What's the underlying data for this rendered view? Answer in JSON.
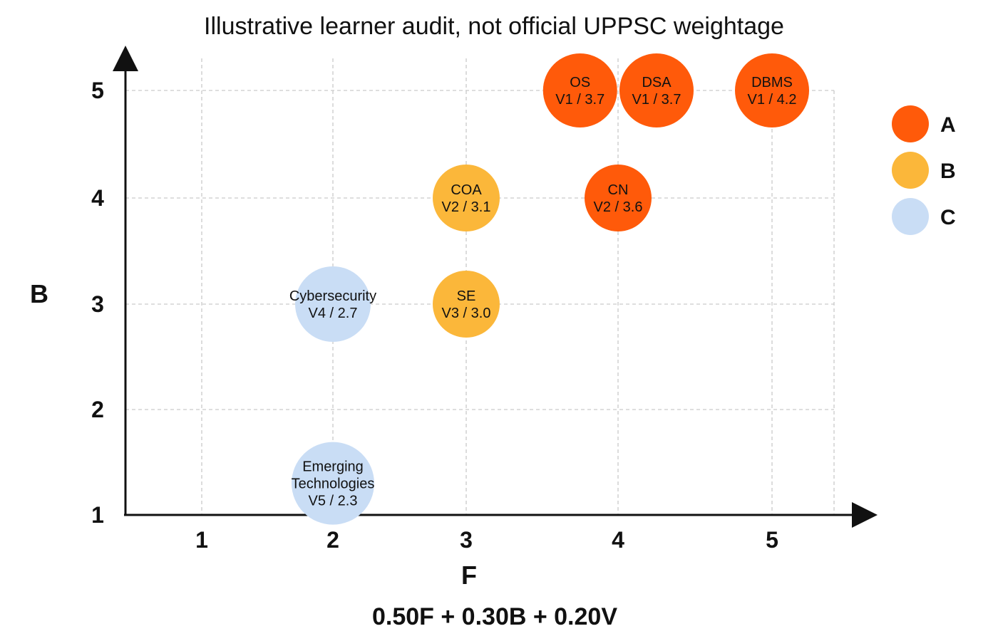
{
  "chart_data": {
    "type": "scatter",
    "title": "Illustrative learner audit, not official UPPSC weightage",
    "xlabel": "F",
    "ylabel": "B",
    "formula": "0.50F + 0.30B + 0.20V",
    "xlim": [
      0.5,
      5.5
    ],
    "ylim": [
      1,
      5.5
    ],
    "xticks": [
      "1",
      "2",
      "3",
      "4",
      "5"
    ],
    "yticks": [
      "1",
      "2",
      "3",
      "4",
      "5"
    ],
    "grid": true,
    "legend_position": "right",
    "colors": {
      "A": "#ff5a0a",
      "B": "#fbb73a",
      "C": "#c9ddf5"
    },
    "legend": [
      {
        "key": "A",
        "label": "A"
      },
      {
        "key": "B",
        "label": "B"
      },
      {
        "key": "C",
        "label": "C"
      }
    ],
    "points": [
      {
        "name": "OS",
        "detail": "V1 / 3.7",
        "x": 3.75,
        "y": 5,
        "v": 1,
        "score": 3.7,
        "group": "A"
      },
      {
        "name": "DSA",
        "detail": "V1 / 3.7",
        "x": 4.25,
        "y": 5,
        "v": 1,
        "score": 3.7,
        "group": "A"
      },
      {
        "name": "DBMS",
        "detail": "V1 / 4.2",
        "x": 5,
        "y": 5,
        "v": 1,
        "score": 4.2,
        "group": "A"
      },
      {
        "name": "COA",
        "detail": "V2 / 3.1",
        "x": 3,
        "y": 4,
        "v": 2,
        "score": 3.1,
        "group": "B"
      },
      {
        "name": "CN",
        "detail": "V2 / 3.6",
        "x": 4,
        "y": 4,
        "v": 2,
        "score": 3.6,
        "group": "A"
      },
      {
        "name": "SE",
        "detail": "V3 / 3.0",
        "x": 3,
        "y": 3,
        "v": 3,
        "score": 3.0,
        "group": "B"
      },
      {
        "name": "Cybersecurity",
        "detail": "V4 / 2.7",
        "x": 2,
        "y": 3,
        "v": 4,
        "score": 2.7,
        "group": "C"
      },
      {
        "name": "Emerging Technologies",
        "detail": "V5 / 2.3",
        "x": 2,
        "y": 1.3,
        "v": 5,
        "score": 2.3,
        "group": "C"
      }
    ]
  }
}
